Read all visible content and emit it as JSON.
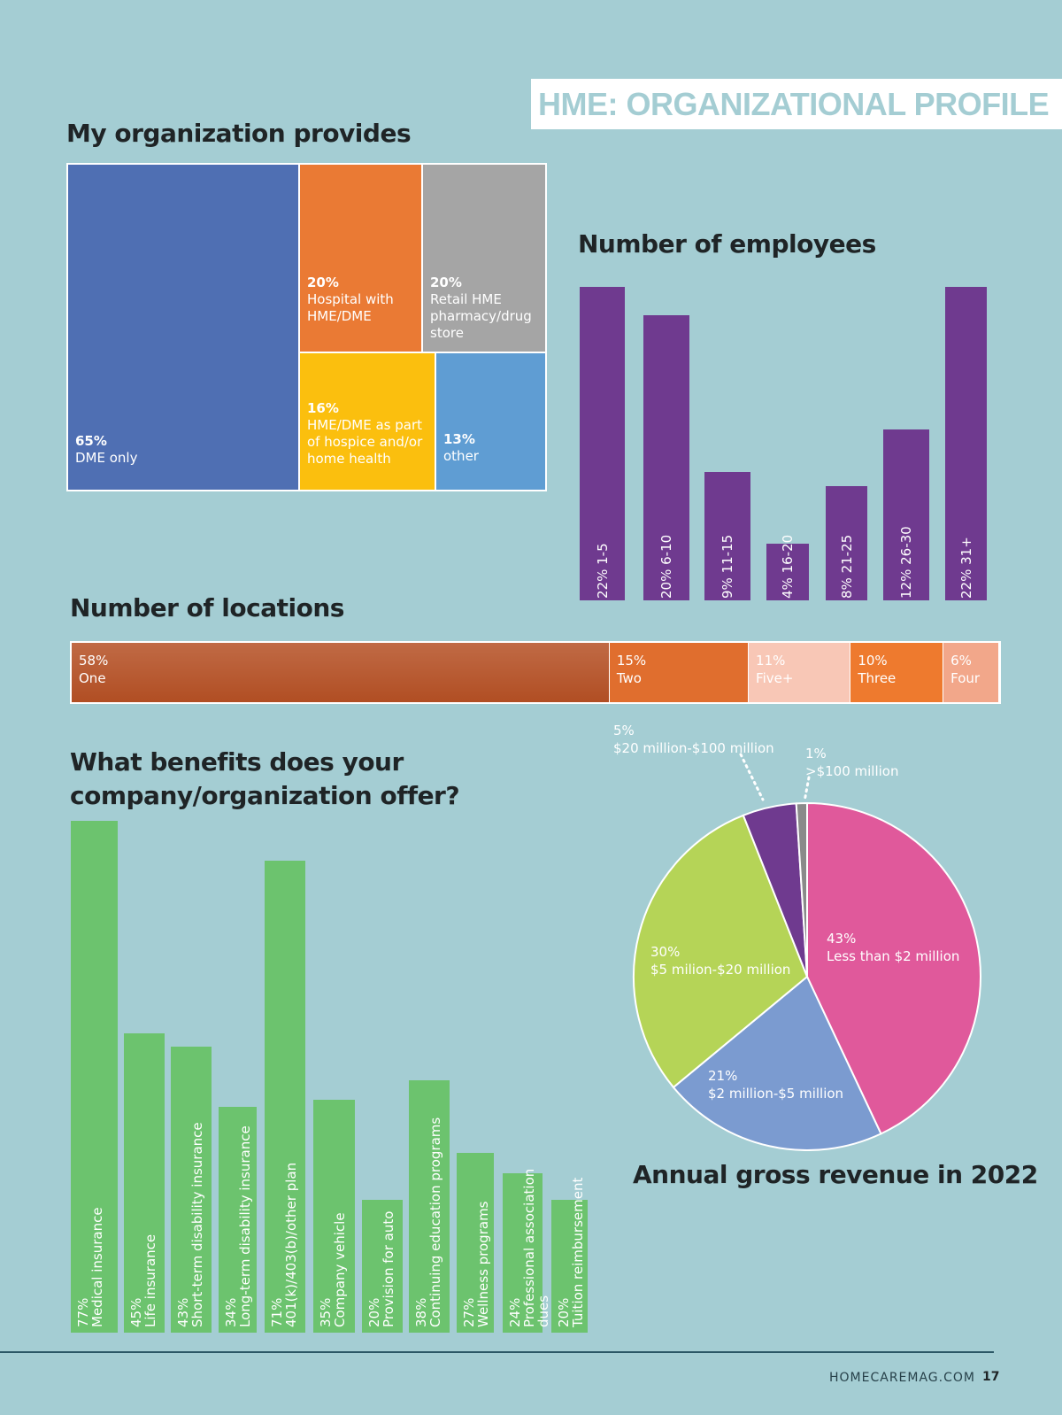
{
  "banner": "HME: ORGANIZATIONAL PROFILE",
  "footer": {
    "site": "HOMECAREMAG.COM",
    "page": "17"
  },
  "chart_data": [
    {
      "id": "provides",
      "type": "treemap",
      "title": "My organization provides",
      "items": [
        {
          "pct": "65%",
          "label": "DME only",
          "value": 65,
          "color": "#4f6fb3"
        },
        {
          "pct": "20%",
          "label": "Hospital with HME/DME",
          "value": 20,
          "color": "#ea7a34"
        },
        {
          "pct": "20%",
          "label": "Retail HME pharmacy/drug store",
          "value": 20,
          "color": "#a5a5a5"
        },
        {
          "pct": "16%",
          "label": "HME/DME as part of hospice and/or home health",
          "value": 16,
          "color": "#fbbf0e"
        },
        {
          "pct": "13%",
          "label": "other",
          "value": 13,
          "color": "#5f9dd3"
        }
      ]
    },
    {
      "id": "employees",
      "type": "bar",
      "title": "Number of employees",
      "categories": [
        "1-5",
        "6-10",
        "11-15",
        "16-20",
        "21-25",
        "26-30",
        "31+"
      ],
      "values": [
        22,
        20,
        9,
        4,
        8,
        12,
        22
      ],
      "labels": [
        "22%",
        "20%",
        "9%",
        "4%",
        "8%",
        "12%",
        "22%"
      ],
      "color": "#6f3a8f",
      "ylim": [
        0,
        22
      ]
    },
    {
      "id": "locations",
      "type": "bar",
      "orientation": "stacked-horizontal",
      "title": "Number of locations",
      "categories": [
        "One",
        "Two",
        "Five+",
        "Three",
        "Four"
      ],
      "values": [
        58,
        15,
        11,
        10,
        6
      ],
      "labels": [
        "58%",
        "15%",
        "11%",
        "10%",
        "6%"
      ],
      "colors": [
        "#b9542a",
        "#e06e2e",
        "#f8c7b6",
        "#ee7a2e",
        "#f2a78a"
      ]
    },
    {
      "id": "benefits",
      "type": "bar",
      "title": "What benefits does your company/organization offer?",
      "categories": [
        "Medical insurance",
        "Life insurance",
        "Short-term disability insurance",
        "Long-term disability insurance",
        "401(k)/403(b)/other plan",
        "Company vehicle",
        "Provision for auto",
        "Continuing education programs",
        "Wellness programs",
        "Professional association dues",
        "Tuition reimbursement"
      ],
      "values": [
        77,
        45,
        43,
        34,
        71,
        35,
        20,
        38,
        27,
        24,
        20
      ],
      "labels": [
        "77%",
        "45%",
        "43%",
        "34%",
        "71%",
        "35%",
        "20%",
        "38%",
        "27%",
        "24%",
        "20%"
      ],
      "color": "#6cc36e",
      "ylim": [
        0,
        77
      ]
    },
    {
      "id": "revenue",
      "type": "pie",
      "title": "Annual gross revenue in 2022",
      "slices": [
        {
          "pct": "43%",
          "label": "Less than $2 million",
          "value": 43,
          "color": "#e0599b"
        },
        {
          "pct": "21%",
          "label": "$2 million-$5 million",
          "value": 21,
          "color": "#7b9bd0"
        },
        {
          "pct": "30%",
          "label": "$5 milion-$20 million",
          "value": 30,
          "color": "#b5d457"
        },
        {
          "pct": "5%",
          "label": "$20 million-$100 million",
          "value": 5,
          "color": "#6f3a8f"
        },
        {
          "pct": "1%",
          "label": ">$100 million",
          "value": 1,
          "color": "#8a8a8a"
        }
      ]
    }
  ]
}
